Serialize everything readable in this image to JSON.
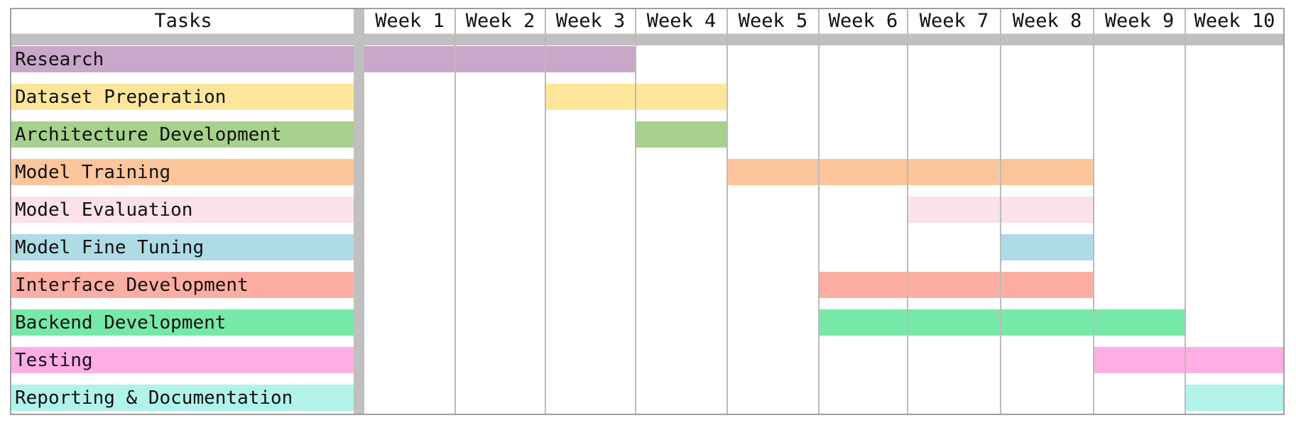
{
  "chart_data": {
    "type": "bar",
    "tasks_header": "Tasks",
    "weeks": [
      "Week 1",
      "Week 2",
      "Week 3",
      "Week 4",
      "Week 5",
      "Week 6",
      "Week 7",
      "Week 8",
      "Week 9",
      "Week 10"
    ],
    "tasks": [
      {
        "name": "Research",
        "start": 1,
        "end": 3,
        "color": "#c9a7c9"
      },
      {
        "name": "Dataset Preperation",
        "start": 3,
        "end": 4,
        "color": "#fde69a"
      },
      {
        "name": "Architecture Development",
        "start": 4,
        "end": 4,
        "color": "#a7d18d"
      },
      {
        "name": "Model Training",
        "start": 5,
        "end": 8,
        "color": "#fdc59b"
      },
      {
        "name": "Model Evaluation",
        "start": 7,
        "end": 8,
        "color": "#fbe1e8"
      },
      {
        "name": "Model Fine Tuning",
        "start": 8,
        "end": 8,
        "color": "#aedbe4"
      },
      {
        "name": "Interface Development",
        "start": 6,
        "end": 8,
        "color": "#fdaea3"
      },
      {
        "name": "Backend Development",
        "start": 6,
        "end": 9,
        "color": "#77e8a8"
      },
      {
        "name": "Testing",
        "start": 9,
        "end": 10,
        "color": "#fdaee4"
      },
      {
        "name": "Reporting & Documentation",
        "start": 10,
        "end": 10,
        "color": "#b1f3e9"
      }
    ],
    "colors": {
      "grid": "#bbbbbb",
      "header_band": "#c0c0c0",
      "border": "#9e9e9e"
    }
  }
}
